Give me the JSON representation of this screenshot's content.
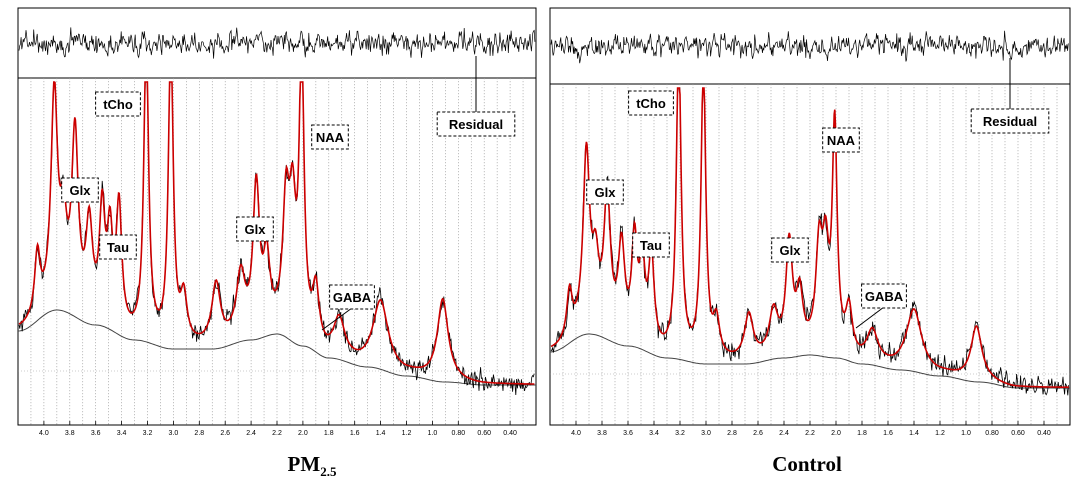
{
  "chart_data": [
    {
      "type": "line",
      "panel_title": "PM",
      "panel_title_sub": "2.5",
      "x_axis": {
        "label": "",
        "reversed": true,
        "xlim": [
          4.2,
          0.2
        ],
        "tick_labels": [
          "4.0",
          "3.8",
          "3.6",
          "3.4",
          "3.2",
          "3.0",
          "2.8",
          "2.6",
          "2.4",
          "2.2",
          "2.0",
          "1.8",
          "1.6",
          "1.4",
          "1.2",
          "1.0",
          "0.80",
          "0.60",
          "0.40"
        ],
        "tick_values": [
          4.0,
          3.8,
          3.6,
          3.4,
          3.2,
          3.0,
          2.8,
          2.6,
          2.4,
          2.2,
          2.0,
          1.8,
          1.6,
          1.4,
          1.2,
          1.0,
          0.8,
          0.6,
          0.4
        ]
      },
      "peaks": [
        {
          "ppm": 4.05,
          "h": 0.2,
          "w": 0.025
        },
        {
          "ppm": 3.92,
          "h": 0.7,
          "w": 0.03
        },
        {
          "ppm": 3.85,
          "h": 0.25,
          "w": 0.03
        },
        {
          "ppm": 3.76,
          "h": 0.58,
          "w": 0.03
        },
        {
          "ppm": 3.65,
          "h": 0.3,
          "w": 0.03
        },
        {
          "ppm": 3.55,
          "h": 0.35,
          "w": 0.025
        },
        {
          "ppm": 3.49,
          "h": 0.28,
          "w": 0.025
        },
        {
          "ppm": 3.42,
          "h": 0.4,
          "w": 0.025
        },
        {
          "ppm": 3.21,
          "h": 1.0,
          "w": 0.022
        },
        {
          "ppm": 3.02,
          "h": 1.03,
          "w": 0.022
        },
        {
          "ppm": 2.92,
          "h": 0.15,
          "w": 0.03
        },
        {
          "ppm": 2.67,
          "h": 0.2,
          "w": 0.04
        },
        {
          "ppm": 2.48,
          "h": 0.2,
          "w": 0.04
        },
        {
          "ppm": 2.36,
          "h": 0.48,
          "w": 0.03
        },
        {
          "ppm": 2.28,
          "h": 0.22,
          "w": 0.03
        },
        {
          "ppm": 2.13,
          "h": 0.4,
          "w": 0.03
        },
        {
          "ppm": 2.08,
          "h": 0.38,
          "w": 0.03
        },
        {
          "ppm": 2.01,
          "h": 0.95,
          "w": 0.022
        },
        {
          "ppm": 1.9,
          "h": 0.18,
          "w": 0.03
        },
        {
          "ppm": 1.72,
          "h": 0.12,
          "w": 0.05
        },
        {
          "ppm": 1.4,
          "h": 0.22,
          "w": 0.07
        },
        {
          "ppm": 0.92,
          "h": 0.27,
          "w": 0.05
        }
      ],
      "baseline": [
        {
          "ppm": 4.2,
          "v": 0.18
        },
        {
          "ppm": 3.9,
          "v": 0.25
        },
        {
          "ppm": 3.6,
          "v": 0.2
        },
        {
          "ppm": 3.3,
          "v": 0.15
        },
        {
          "ppm": 3.0,
          "v": 0.12
        },
        {
          "ppm": 2.7,
          "v": 0.12
        },
        {
          "ppm": 2.4,
          "v": 0.15
        },
        {
          "ppm": 2.2,
          "v": 0.17
        },
        {
          "ppm": 2.0,
          "v": 0.13
        },
        {
          "ppm": 1.8,
          "v": 0.09
        },
        {
          "ppm": 1.5,
          "v": 0.06
        },
        {
          "ppm": 1.2,
          "v": 0.03
        },
        {
          "ppm": 0.9,
          "v": 0.01
        },
        {
          "ppm": 0.6,
          "v": 0.0
        },
        {
          "ppm": 0.2,
          "v": 0.0
        }
      ],
      "series": [
        {
          "name": "Spectrum",
          "color": "#000000"
        },
        {
          "name": "Fit",
          "color": "#cc0000"
        },
        {
          "name": "Baseline",
          "color": "#444444"
        },
        {
          "name": "Residual",
          "color": "#000000"
        }
      ],
      "annotations": [
        "Glx",
        "tCho",
        "Tau",
        "Glx",
        "NAA",
        "GABA",
        "Residual"
      ]
    },
    {
      "type": "line",
      "panel_title": "Control",
      "x_axis": {
        "label": "",
        "reversed": true,
        "xlim": [
          4.2,
          0.2
        ],
        "tick_labels": [
          "4.0",
          "3.8",
          "3.6",
          "3.4",
          "3.2",
          "3.0",
          "2.8",
          "2.6",
          "2.4",
          "2.2",
          "2.0",
          "1.8",
          "1.6",
          "1.4",
          "1.2",
          "1.0",
          "0.80",
          "0.60",
          "0.40"
        ],
        "tick_values": [
          4.0,
          3.8,
          3.6,
          3.4,
          3.2,
          3.0,
          2.8,
          2.6,
          2.4,
          2.2,
          2.0,
          1.8,
          1.6,
          1.4,
          1.2,
          1.0,
          0.8,
          0.6,
          0.4
        ]
      },
      "peaks": [
        {
          "ppm": 4.05,
          "h": 0.15,
          "w": 0.025
        },
        {
          "ppm": 3.92,
          "h": 0.58,
          "w": 0.03
        },
        {
          "ppm": 3.85,
          "h": 0.2,
          "w": 0.03
        },
        {
          "ppm": 3.76,
          "h": 0.45,
          "w": 0.03
        },
        {
          "ppm": 3.65,
          "h": 0.3,
          "w": 0.03
        },
        {
          "ppm": 3.55,
          "h": 0.32,
          "w": 0.025
        },
        {
          "ppm": 3.49,
          "h": 0.25,
          "w": 0.025
        },
        {
          "ppm": 3.42,
          "h": 0.3,
          "w": 0.025
        },
        {
          "ppm": 3.21,
          "h": 1.03,
          "w": 0.022
        },
        {
          "ppm": 3.02,
          "h": 0.98,
          "w": 0.022
        },
        {
          "ppm": 2.92,
          "h": 0.12,
          "w": 0.03
        },
        {
          "ppm": 2.67,
          "h": 0.15,
          "w": 0.04
        },
        {
          "ppm": 2.48,
          "h": 0.14,
          "w": 0.04
        },
        {
          "ppm": 2.36,
          "h": 0.36,
          "w": 0.03
        },
        {
          "ppm": 2.28,
          "h": 0.18,
          "w": 0.03
        },
        {
          "ppm": 2.13,
          "h": 0.32,
          "w": 0.03
        },
        {
          "ppm": 2.08,
          "h": 0.3,
          "w": 0.03
        },
        {
          "ppm": 2.01,
          "h": 0.74,
          "w": 0.022
        },
        {
          "ppm": 1.9,
          "h": 0.15,
          "w": 0.03
        },
        {
          "ppm": 1.72,
          "h": 0.1,
          "w": 0.05
        },
        {
          "ppm": 1.4,
          "h": 0.2,
          "w": 0.07
        },
        {
          "ppm": 0.92,
          "h": 0.18,
          "w": 0.05
        }
      ],
      "baseline": [
        {
          "ppm": 4.2,
          "v": 0.12
        },
        {
          "ppm": 3.9,
          "v": 0.18
        },
        {
          "ppm": 3.6,
          "v": 0.14
        },
        {
          "ppm": 3.3,
          "v": 0.1
        },
        {
          "ppm": 3.0,
          "v": 0.08
        },
        {
          "ppm": 2.7,
          "v": 0.08
        },
        {
          "ppm": 2.4,
          "v": 0.1
        },
        {
          "ppm": 2.2,
          "v": 0.11
        },
        {
          "ppm": 2.0,
          "v": 0.1
        },
        {
          "ppm": 1.8,
          "v": 0.08
        },
        {
          "ppm": 1.5,
          "v": 0.06
        },
        {
          "ppm": 1.2,
          "v": 0.04
        },
        {
          "ppm": 0.9,
          "v": 0.02
        },
        {
          "ppm": 0.6,
          "v": 0.0
        },
        {
          "ppm": 0.2,
          "v": 0.0
        }
      ],
      "series": [
        {
          "name": "Spectrum",
          "color": "#000000"
        },
        {
          "name": "Fit",
          "color": "#cc0000"
        },
        {
          "name": "Baseline",
          "color": "#444444"
        },
        {
          "name": "Residual",
          "color": "#000000"
        }
      ],
      "annotations": [
        "Glx",
        "tCho",
        "Tau",
        "Glx",
        "NAA",
        "GABA",
        "Residual"
      ]
    }
  ]
}
